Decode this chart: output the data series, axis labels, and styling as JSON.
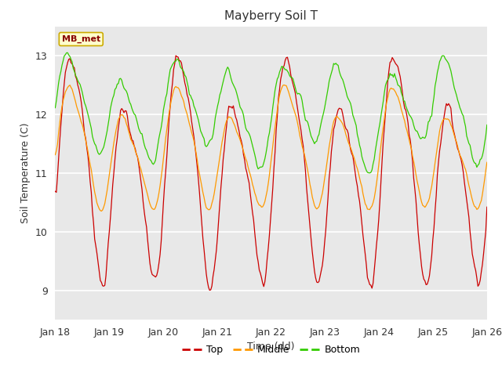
{
  "title": "Mayberry Soil T",
  "xlabel": "Time (dd)",
  "ylabel": "Soil Temperature (C)",
  "ylim": [
    8.5,
    13.5
  ],
  "xlim_days": [
    18,
    26
  ],
  "x_ticks": [
    18,
    19,
    20,
    21,
    22,
    23,
    24,
    25,
    26
  ],
  "x_tick_labels": [
    "Jan 18",
    "Jan 19",
    "Jan 20",
    "Jan 21",
    "Jan 22",
    "Jan 23",
    "Jan 24",
    "Jan 25",
    "Jan 26"
  ],
  "legend_label": "MB_met",
  "series_labels": [
    "Top",
    "Middle",
    "Bottom"
  ],
  "colors": {
    "Top": "#cc0000",
    "Middle": "#ff9900",
    "Bottom": "#33cc00"
  },
  "fig_bg_color": "#ffffff",
  "plot_bg_color": "#e8e8e8",
  "legend_box_facecolor": "#ffffcc",
  "legend_box_edgecolor": "#ccaa00",
  "grid_color": "#ffffff",
  "title_fontsize": 11,
  "label_fontsize": 9,
  "tick_fontsize": 9
}
